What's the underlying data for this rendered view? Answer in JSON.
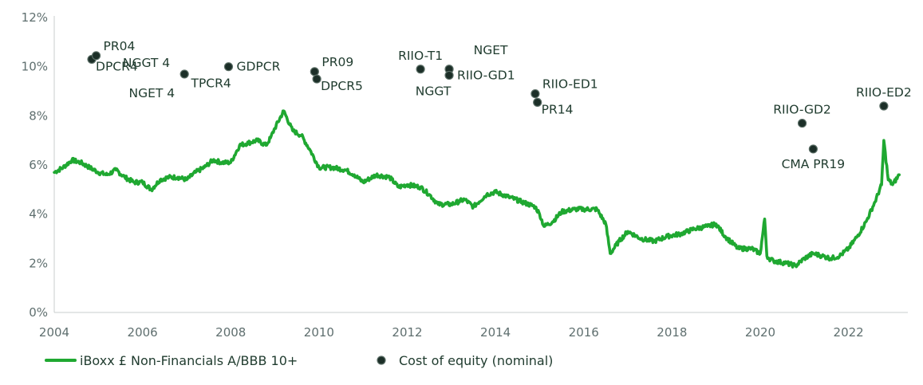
{
  "chart_data": {
    "type": "line",
    "xlim": [
      2004,
      2023.2
    ],
    "ylim": [
      0,
      12
    ],
    "x_ticks": [
      {
        "value": 2004,
        "label": "2004"
      },
      {
        "value": 2006,
        "label": "2006"
      },
      {
        "value": 2008,
        "label": "2008"
      },
      {
        "value": 2010,
        "label": "2010"
      },
      {
        "value": 2012,
        "label": "2012"
      },
      {
        "value": 2014,
        "label": "2014"
      },
      {
        "value": 2016,
        "label": "2016"
      },
      {
        "value": 2018,
        "label": "2018"
      },
      {
        "value": 2020,
        "label": "2020"
      },
      {
        "value": 2022,
        "label": "2022"
      }
    ],
    "y_ticks": [
      {
        "value": 0,
        "label": "0%"
      },
      {
        "value": 2,
        "label": "2%"
      },
      {
        "value": 4,
        "label": "4%"
      },
      {
        "value": 6,
        "label": "6%"
      },
      {
        "value": 8,
        "label": "8%"
      },
      {
        "value": 10,
        "label": "10%"
      },
      {
        "value": 12,
        "label": "12%"
      }
    ],
    "grid": false,
    "legend_position": "bottom-left",
    "series": [
      {
        "name": "iBoxx £ Non-Financials A/BBB 10+",
        "kind": "line",
        "color": "#1fa831",
        "x": [
          2004.0,
          2004.2,
          2004.4,
          2004.6,
          2004.8,
          2005.0,
          2005.2,
          2005.4,
          2005.6,
          2005.8,
          2006.0,
          2006.2,
          2006.4,
          2006.6,
          2006.8,
          2007.0,
          2007.2,
          2007.4,
          2007.6,
          2007.8,
          2008.0,
          2008.2,
          2008.4,
          2008.6,
          2008.8,
          2008.9,
          2009.0,
          2009.2,
          2009.4,
          2009.6,
          2009.8,
          2010.0,
          2010.3,
          2010.6,
          2010.8,
          2011.0,
          2011.3,
          2011.6,
          2011.8,
          2012.0,
          2012.3,
          2012.5,
          2012.7,
          2013.0,
          2013.3,
          2013.5,
          2013.8,
          2014.0,
          2014.3,
          2014.6,
          2014.9,
          2015.0,
          2015.1,
          2015.3,
          2015.5,
          2015.8,
          2016.0,
          2016.3,
          2016.5,
          2016.6,
          2016.8,
          2017.0,
          2017.3,
          2017.6,
          2017.9,
          2018.2,
          2018.5,
          2018.8,
          2019.0,
          2019.2,
          2019.5,
          2019.8,
          2020.0,
          2020.1,
          2020.15,
          2020.2,
          2020.3,
          2020.6,
          2020.8,
          2021.0,
          2021.2,
          2021.4,
          2021.6,
          2021.8,
          2022.0,
          2022.2,
          2022.4,
          2022.6,
          2022.75,
          2022.8,
          2022.9,
          2023.0,
          2023.15
        ],
        "values": [
          5.7,
          5.9,
          6.2,
          6.1,
          5.9,
          5.7,
          5.6,
          5.8,
          5.5,
          5.3,
          5.3,
          5.0,
          5.4,
          5.5,
          5.5,
          5.4,
          5.7,
          5.9,
          6.2,
          6.1,
          6.1,
          6.8,
          6.9,
          7.0,
          6.8,
          7.1,
          7.5,
          8.2,
          7.4,
          7.2,
          6.6,
          5.9,
          5.9,
          5.8,
          5.6,
          5.3,
          5.6,
          5.5,
          5.1,
          5.2,
          5.1,
          4.8,
          4.4,
          4.4,
          4.6,
          4.3,
          4.8,
          4.9,
          4.7,
          4.5,
          4.3,
          4.0,
          3.5,
          3.7,
          4.1,
          4.2,
          4.2,
          4.2,
          3.6,
          2.4,
          2.9,
          3.3,
          3.0,
          2.9,
          3.1,
          3.2,
          3.4,
          3.5,
          3.6,
          3.1,
          2.6,
          2.6,
          2.4,
          3.8,
          2.3,
          2.2,
          2.1,
          2.0,
          1.9,
          2.2,
          2.4,
          2.3,
          2.2,
          2.3,
          2.6,
          3.1,
          3.7,
          4.5,
          5.2,
          7.0,
          5.4,
          5.2,
          5.6
        ]
      },
      {
        "name": "Cost of equity (nominal)",
        "kind": "scatter",
        "color": "#1c2f28",
        "points": [
          {
            "x": 2004.85,
            "y": 10.3,
            "label": "DPCR4"
          },
          {
            "x": 2004.95,
            "y": 10.45,
            "label": "PR04"
          },
          {
            "x": 2006.95,
            "y": 9.7,
            "label": "NGGT 4 / NGET 4"
          },
          {
            "x": 2007.95,
            "y": 10.0,
            "label": "TPCR4 / GDPCR"
          },
          {
            "x": 2009.9,
            "y": 9.8,
            "label": "PR09"
          },
          {
            "x": 2009.95,
            "y": 9.5,
            "label": "DPCR5"
          },
          {
            "x": 2012.3,
            "y": 9.9,
            "label": "RIIO-T1"
          },
          {
            "x": 2012.95,
            "y": 9.9,
            "label": "NGET"
          },
          {
            "x": 2012.95,
            "y": 9.65,
            "label": "RIIO-GD1 / NGGT"
          },
          {
            "x": 2014.9,
            "y": 8.9,
            "label": "RIIO-ED1"
          },
          {
            "x": 2014.95,
            "y": 8.55,
            "label": "PR14"
          },
          {
            "x": 2020.95,
            "y": 7.7,
            "label": "RIIO-GD2"
          },
          {
            "x": 2021.2,
            "y": 6.65,
            "label": "CMA PR19"
          },
          {
            "x": 2022.8,
            "y": 8.4,
            "label": "RIIO-ED2"
          }
        ]
      }
    ],
    "annotations": [
      {
        "text": "PR04",
        "x": 2004.95,
        "y": 10.45,
        "pos": "right-up"
      },
      {
        "text": "DPCR4",
        "x": 2004.85,
        "y": 10.3,
        "pos": "right-down"
      },
      {
        "text": "NGGT 4",
        "x": 2006.95,
        "y": 9.7,
        "pos": "left-up"
      },
      {
        "text": "NGET 4",
        "x": 2006.95,
        "y": 9.7,
        "pos": "left-down"
      },
      {
        "text": "TPCR4",
        "x": 2007.95,
        "y": 10.0,
        "pos": "left-down2"
      },
      {
        "text": "GDPCR",
        "x": 2007.95,
        "y": 10.0,
        "pos": "right"
      },
      {
        "text": "PR09",
        "x": 2009.9,
        "y": 9.8,
        "pos": "right-up"
      },
      {
        "text": "DPCR5",
        "x": 2009.95,
        "y": 9.5,
        "pos": "right-down"
      },
      {
        "text": "RIIO-T1",
        "x": 2012.3,
        "y": 9.9,
        "pos": "above"
      },
      {
        "text": "NGET",
        "x": 2012.95,
        "y": 9.9,
        "pos": "above-right"
      },
      {
        "text": "RIIO-GD1",
        "x": 2012.95,
        "y": 9.65,
        "pos": "right"
      },
      {
        "text": "NGGT",
        "x": 2012.95,
        "y": 9.65,
        "pos": "below-left"
      },
      {
        "text": "RIIO-ED1",
        "x": 2014.9,
        "y": 8.9,
        "pos": "right-up"
      },
      {
        "text": "PR14",
        "x": 2014.95,
        "y": 8.55,
        "pos": "right-down"
      },
      {
        "text": "RIIO-GD2",
        "x": 2020.95,
        "y": 7.7,
        "pos": "above"
      },
      {
        "text": "CMA PR19",
        "x": 2021.2,
        "y": 6.65,
        "pos": "below"
      },
      {
        "text": "RIIO-ED2",
        "x": 2022.8,
        "y": 8.4,
        "pos": "above"
      }
    ],
    "legend": [
      {
        "label": "iBoxx £ Non-Financials A/BBB 10+",
        "kind": "line",
        "color": "#1fa831"
      },
      {
        "label": "Cost of equity (nominal)",
        "kind": "marker",
        "color": "#1c2f28"
      }
    ],
    "title": "",
    "xlabel": "",
    "ylabel": ""
  }
}
